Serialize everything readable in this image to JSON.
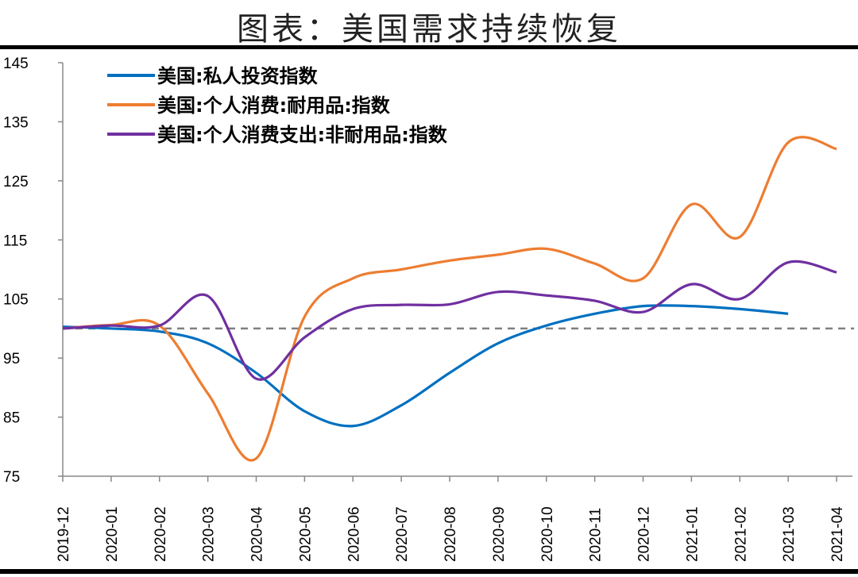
{
  "title": "图表：美国需求持续恢复",
  "chart_data": {
    "type": "line",
    "title": "图表：美国需求持续恢复",
    "xlabel": "",
    "ylabel": "",
    "ylim": [
      75,
      145
    ],
    "yticks": [
      75,
      85,
      95,
      105,
      115,
      125,
      135,
      145
    ],
    "grid": false,
    "legend_position": "top-left",
    "reference_line": {
      "y": 100,
      "style": "dashed",
      "color": "#7F7F7F"
    },
    "categories": [
      "2019-12",
      "2020-01",
      "2020-02",
      "2020-03",
      "2020-04",
      "2020-05",
      "2020-06",
      "2020-07",
      "2020-08",
      "2020-09",
      "2020-10",
      "2020-11",
      "2020-12",
      "2021-01",
      "2021-02",
      "2021-03",
      "2021-04"
    ],
    "series": [
      {
        "name": "美国:私人投资指数",
        "color": "#0070C0",
        "values": [
          100.3,
          100,
          99.5,
          97.5,
          92.5,
          86,
          83.5,
          87,
          92.5,
          97.5,
          100.5,
          102.5,
          103.8,
          103.8,
          103.3,
          102.5,
          null
        ]
      },
      {
        "name": "美国:个人消费:耐用品:指数",
        "color": "#ED7D31",
        "values": [
          100,
          100.6,
          100.5,
          89,
          78,
          102,
          108.5,
          110,
          111.5,
          112.5,
          113.5,
          111,
          108.5,
          121,
          115.5,
          131.5,
          130.4
        ]
      },
      {
        "name": "美国:个人消费支出:非耐用品:指数",
        "color": "#7030A0",
        "values": [
          100,
          100.5,
          100.5,
          105.5,
          91.5,
          98.5,
          103.3,
          104,
          104.1,
          106.2,
          105.6,
          104.7,
          102.8,
          107.5,
          105,
          111.2,
          109.5
        ]
      }
    ]
  }
}
